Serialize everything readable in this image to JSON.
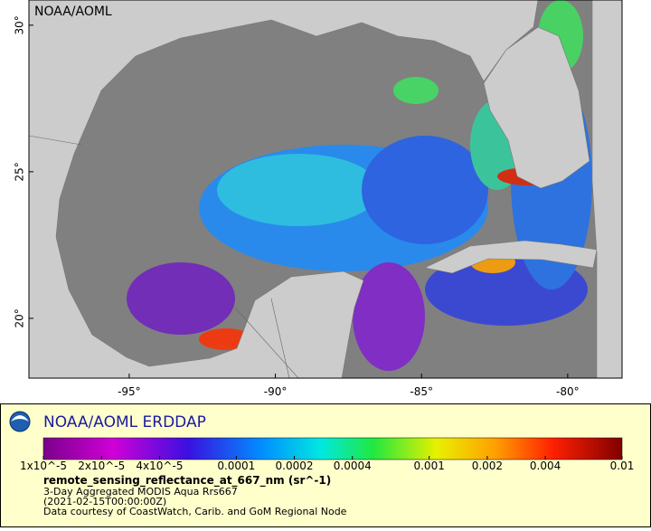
{
  "map": {
    "corner_label": "NOAA/AOML",
    "xlim": [
      -98.43,
      -78.14
    ],
    "ylim": [
      17.96,
      30.86
    ],
    "lat_ticks": [
      {
        "value": 30,
        "label": "30°"
      },
      {
        "value": 25,
        "label": "25°"
      },
      {
        "value": 20,
        "label": "20°"
      }
    ],
    "lon_ticks": [
      {
        "value": -95,
        "label": "-95°"
      },
      {
        "value": -90,
        "label": "-90°"
      },
      {
        "value": -85,
        "label": "-85°"
      },
      {
        "value": -80,
        "label": "-80°"
      }
    ]
  },
  "legend": {
    "title": "NOAA/AOML ERDDAP",
    "log_scale": true,
    "range": [
      1e-05,
      0.01
    ],
    "ticks": [
      {
        "value": 1e-05,
        "label": "1x10^-5"
      },
      {
        "value": 2e-05,
        "label": "2x10^-5"
      },
      {
        "value": 4e-05,
        "label": "4x10^-5"
      },
      {
        "value": 0.0001,
        "label": "0.0001"
      },
      {
        "value": 0.0002,
        "label": "0.0002"
      },
      {
        "value": 0.0004,
        "label": "0.0004"
      },
      {
        "value": 0.001,
        "label": "0.001"
      },
      {
        "value": 0.002,
        "label": "0.002"
      },
      {
        "value": 0.004,
        "label": "0.004"
      },
      {
        "value": 0.01,
        "label": "0.01"
      }
    ],
    "variable": "remote_sensing_reflectance_at_667_nm (sr^-1)",
    "lines": [
      "3-Day Aggregated MODIS Aqua Rrs667",
      "(2021-02-15T00:00:00Z)",
      "Data courtesy of CoastWatch, Carib. and GoM Regional Node"
    ]
  }
}
